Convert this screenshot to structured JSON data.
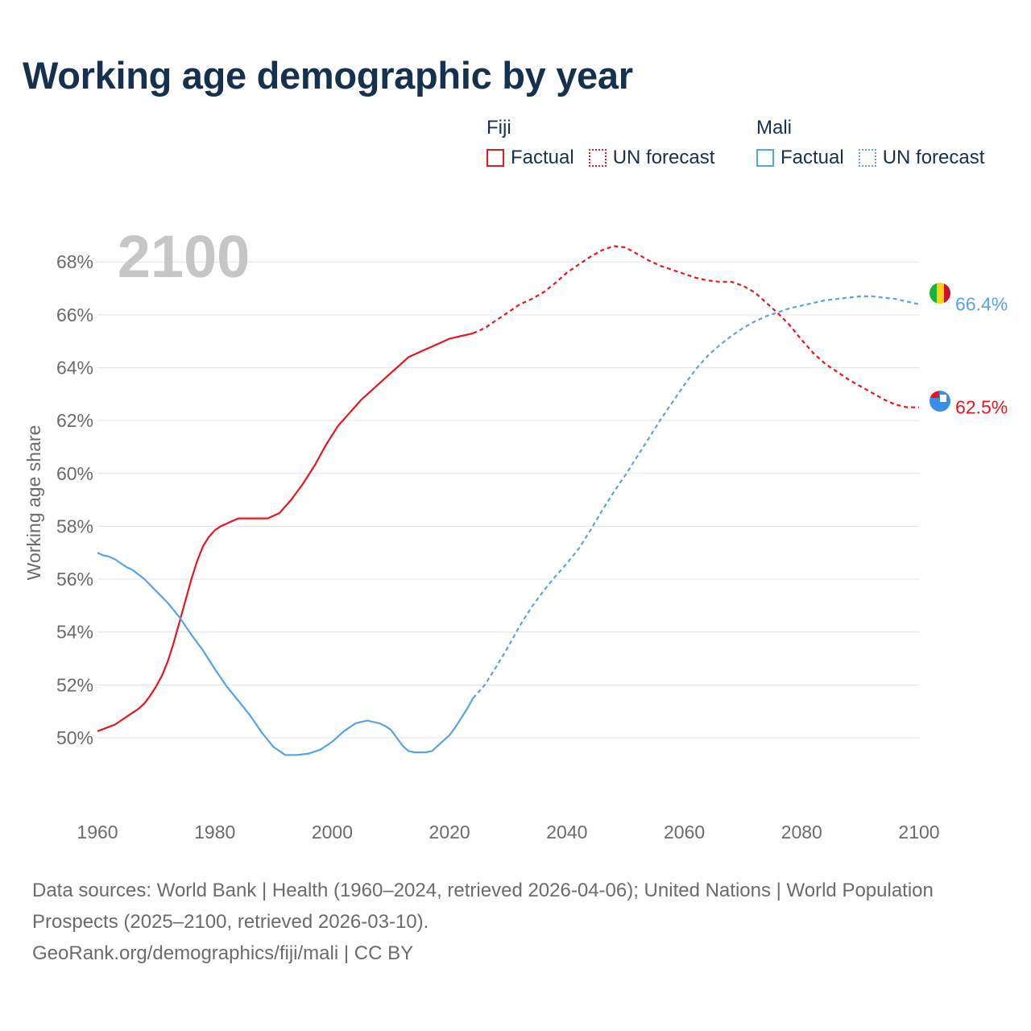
{
  "title": "Working age demographic by year",
  "legend": {
    "groups": [
      {
        "name": "Fiji",
        "factual_label": "Factual",
        "forecast_label": "UN forecast",
        "color": "#e8161e"
      },
      {
        "name": "Mali",
        "factual_label": "Factual",
        "forecast_label": "UN forecast",
        "color": "#5aa2e6"
      }
    ]
  },
  "year_label": "2100",
  "footer": {
    "sources": "Data sources: World Bank | Health (1960–2024, retrieved 2026-04-06); United Nations | World Population Prospects (2025–2100, retrieved 2026-03-10).",
    "credit": "GeoRank.org/demographics/fiji/mali | CC BY"
  },
  "chart_data": {
    "type": "line",
    "title": "Working age demographic by year",
    "xlabel": "",
    "ylabel": "Working age share",
    "xlim": [
      1960,
      2100
    ],
    "ylim": [
      47.5,
      69.5
    ],
    "x_ticks": [
      1960,
      1980,
      2000,
      2020,
      2040,
      2060,
      2080,
      2100
    ],
    "y_ticks": [
      50,
      52,
      54,
      56,
      58,
      60,
      62,
      64,
      66,
      68
    ],
    "y_tick_suffix": "%",
    "grid": true,
    "factual_end_year": 2024,
    "series": [
      {
        "name": "Fiji",
        "color": "#e8161e",
        "end_label": "62.5%",
        "x": [
          1960,
          1963,
          1964,
          1965,
          1967,
          1968,
          1969,
          1970,
          1971,
          1972,
          1973,
          1974,
          1975,
          1976,
          1977,
          1978,
          1979,
          1980,
          1981,
          1982,
          1983,
          1984,
          1985,
          1989,
          1991,
          1993,
          1995,
          1997,
          1999,
          2001,
          2003,
          2005,
          2007,
          2009,
          2011,
          2013,
          2015,
          2017,
          2019,
          2020,
          2021,
          2022,
          2023,
          2024,
          2026,
          2028,
          2030,
          2032,
          2034,
          2036,
          2038,
          2040,
          2042,
          2044,
          2046,
          2048,
          2050,
          2052,
          2054,
          2056,
          2058,
          2060,
          2062,
          2064,
          2066,
          2068,
          2070,
          2072,
          2074,
          2076,
          2078,
          2080,
          2082,
          2084,
          2086,
          2088,
          2090,
          2092,
          2094,
          2096,
          2098,
          2100
        ],
        "y": [
          50.25,
          50.5,
          50.65,
          50.8,
          51.1,
          51.3,
          51.6,
          51.95,
          52.35,
          52.9,
          53.6,
          54.4,
          55.2,
          56.0,
          56.7,
          57.25,
          57.6,
          57.85,
          58.0,
          58.1,
          58.2,
          58.3,
          58.3,
          58.3,
          58.5,
          59.0,
          59.6,
          60.3,
          61.1,
          61.8,
          62.3,
          62.8,
          63.2,
          63.6,
          64.0,
          64.4,
          64.6,
          64.8,
          65.0,
          65.1,
          65.15,
          65.2,
          65.25,
          65.3,
          65.5,
          65.8,
          66.1,
          66.4,
          66.6,
          66.85,
          67.2,
          67.6,
          67.9,
          68.2,
          68.45,
          68.6,
          68.55,
          68.3,
          68.05,
          67.85,
          67.7,
          67.55,
          67.4,
          67.3,
          67.25,
          67.25,
          67.1,
          66.85,
          66.45,
          66.05,
          65.6,
          65.05,
          64.55,
          64.15,
          63.85,
          63.55,
          63.3,
          63.05,
          62.8,
          62.6,
          62.5,
          62.5
        ]
      },
      {
        "name": "Mali",
        "color": "#5aa2e6",
        "end_label": "66.4%",
        "x": [
          1960,
          1961,
          1962,
          1963,
          1964,
          1965,
          1966,
          1968,
          1970,
          1972,
          1974,
          1976,
          1978,
          1980,
          1982,
          1984,
          1986,
          1988,
          1990,
          1992,
          1994,
          1996,
          1998,
          2000,
          2002,
          2004,
          2006,
          2007,
          2008,
          2009,
          2010,
          2011,
          2012,
          2013,
          2014,
          2015,
          2016,
          2017,
          2018,
          2019,
          2020,
          2021,
          2022,
          2023,
          2024,
          2026,
          2028,
          2030,
          2032,
          2034,
          2036,
          2038,
          2040,
          2042,
          2044,
          2046,
          2048,
          2050,
          2052,
          2054,
          2056,
          2058,
          2060,
          2062,
          2064,
          2066,
          2068,
          2070,
          2072,
          2074,
          2076,
          2078,
          2080,
          2082,
          2084,
          2086,
          2088,
          2090,
          2092,
          2094,
          2096,
          2098,
          2100
        ],
        "y": [
          57.0,
          56.9,
          56.85,
          56.75,
          56.6,
          56.45,
          56.35,
          56.0,
          55.55,
          55.1,
          54.55,
          53.9,
          53.3,
          52.6,
          51.95,
          51.4,
          50.85,
          50.2,
          49.65,
          49.35,
          49.35,
          49.4,
          49.55,
          49.85,
          50.25,
          50.55,
          50.65,
          50.6,
          50.55,
          50.45,
          50.3,
          50.0,
          49.7,
          49.5,
          49.45,
          49.45,
          49.45,
          49.5,
          49.7,
          49.9,
          50.1,
          50.4,
          50.75,
          51.1,
          51.5,
          52.0,
          52.7,
          53.45,
          54.25,
          54.95,
          55.55,
          56.1,
          56.6,
          57.15,
          57.85,
          58.6,
          59.3,
          59.95,
          60.65,
          61.35,
          62.05,
          62.7,
          63.35,
          63.95,
          64.45,
          64.85,
          65.2,
          65.5,
          65.75,
          65.95,
          66.1,
          66.25,
          66.35,
          66.45,
          66.55,
          66.6,
          66.65,
          66.7,
          66.7,
          66.65,
          66.6,
          66.5,
          66.4
        ]
      }
    ]
  }
}
